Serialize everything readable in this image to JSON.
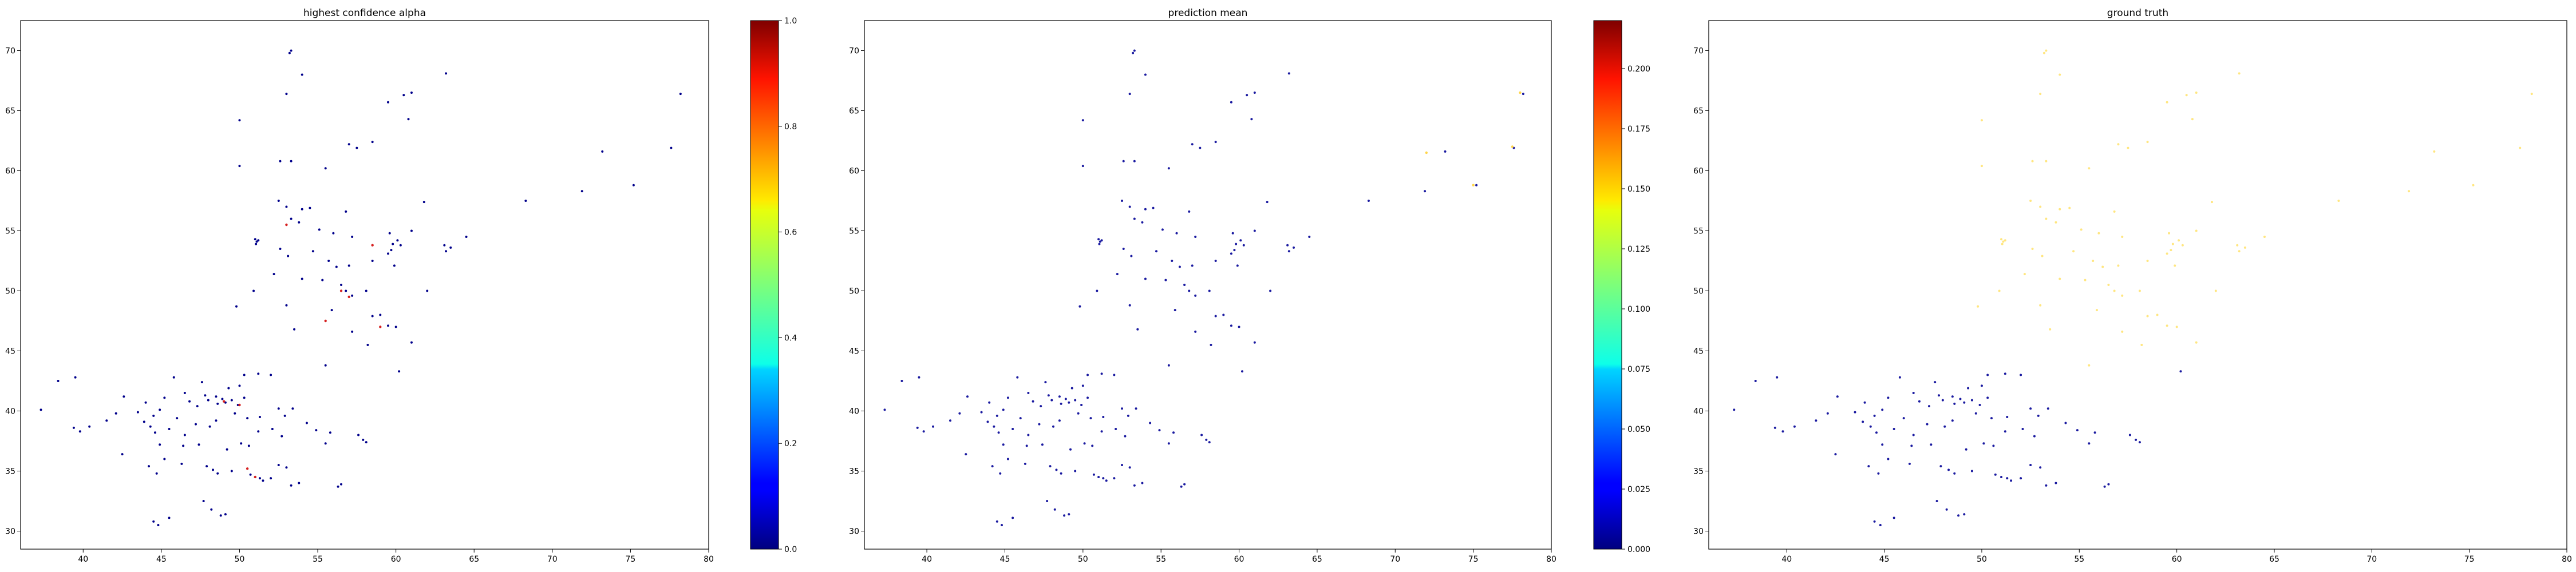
{
  "chart_data": [
    {
      "type": "scatter",
      "title": "highest confidence alpha",
      "xlim": [
        36,
        80
      ],
      "ylim": [
        28.5,
        72.5
      ],
      "xticks": [
        "40",
        "45",
        "50",
        "55",
        "60",
        "65",
        "70",
        "75",
        "80"
      ],
      "yticks": [
        "30",
        "35",
        "40",
        "45",
        "50",
        "55",
        "60",
        "65",
        "70"
      ],
      "colorbar": {
        "min": 0,
        "max": 1.0,
        "colormap": "jet",
        "ticks": [
          "0.0",
          "0.2",
          "0.4",
          "0.6",
          "0.8",
          "1.0"
        ]
      },
      "dominant_color": "#00008b",
      "highlight_color": "#d62020",
      "highlight_points": [
        [
          51,
          34.5
        ],
        [
          50.5,
          35.2
        ],
        [
          53,
          55.5
        ],
        [
          56.5,
          50
        ],
        [
          57,
          49.5
        ],
        [
          59,
          47
        ],
        [
          49,
          40.8
        ],
        [
          50,
          40.5
        ],
        [
          55.5,
          47.5
        ],
        [
          58.5,
          53.8
        ]
      ]
    },
    {
      "type": "scatter",
      "title": "prediction mean",
      "xlim": [
        36,
        80
      ],
      "ylim": [
        28.5,
        72.5
      ],
      "xticks": [
        "40",
        "45",
        "50",
        "55",
        "60",
        "65",
        "70",
        "75",
        "80"
      ],
      "yticks": [
        "30",
        "35",
        "40",
        "45",
        "50",
        "55",
        "60",
        "65",
        "70"
      ],
      "colorbar": {
        "min": 0,
        "max": 0.22,
        "colormap": "jet",
        "ticks": [
          "0.000",
          "0.025",
          "0.050",
          "0.075",
          "0.100",
          "0.125",
          "0.150",
          "0.175",
          "0.200"
        ]
      },
      "dominant_color": "#1a1aa0",
      "highlight_color": "#ffd54a",
      "highlight_points": [
        [
          72,
          61.5
        ],
        [
          77.5,
          62
        ],
        [
          78,
          66.5
        ],
        [
          75,
          58.8
        ]
      ]
    },
    {
      "type": "scatter",
      "title": "ground truth",
      "xlim": [
        36,
        80
      ],
      "ylim": [
        28.5,
        72.5
      ],
      "xticks": [
        "40",
        "45",
        "50",
        "55",
        "60",
        "65",
        "70",
        "75",
        "80"
      ],
      "yticks": [
        "30",
        "35",
        "40",
        "45",
        "50",
        "55",
        "60",
        "65",
        "70"
      ],
      "dominant_color": "#ffe680",
      "lower_color": "#1a1aa0",
      "lower_threshold_lat": 43.5
    }
  ],
  "points": [
    [
      53.3,
      70.0
    ],
    [
      53.2,
      69.8
    ],
    [
      54,
      68
    ],
    [
      61,
      66.5
    ],
    [
      60.5,
      66.3
    ],
    [
      63.2,
      68.1
    ],
    [
      59.5,
      65.7
    ],
    [
      53,
      66.4
    ],
    [
      50,
      64.2
    ],
    [
      60.8,
      64.3
    ],
    [
      53.3,
      60.8
    ],
    [
      52.6,
      60.8
    ],
    [
      55.5,
      60.2
    ],
    [
      50,
      60.4
    ],
    [
      57,
      62.2
    ],
    [
      57.5,
      61.9
    ],
    [
      58.5,
      62.4
    ],
    [
      73.2,
      61.6
    ],
    [
      77.6,
      61.9
    ],
    [
      78.2,
      66.4
    ],
    [
      52.5,
      57.5
    ],
    [
      53,
      57
    ],
    [
      54,
      56.8
    ],
    [
      54.5,
      56.9
    ],
    [
      56.8,
      56.6
    ],
    [
      61.8,
      57.4
    ],
    [
      68.3,
      57.5
    ],
    [
      71.9,
      58.3
    ],
    [
      75.2,
      58.8
    ],
    [
      49.8,
      48.7
    ],
    [
      51,
      54.3
    ],
    [
      51.1,
      54.1
    ],
    [
      51.2,
      54.2
    ],
    [
      51.05,
      53.9
    ],
    [
      53.3,
      56
    ],
    [
      53.8,
      55.7
    ],
    [
      55.1,
      55.1
    ],
    [
      56,
      54.8
    ],
    [
      57.2,
      54.5
    ],
    [
      59.6,
      54.8
    ],
    [
      60.1,
      54.2
    ],
    [
      59.8,
      53.9
    ],
    [
      59.7,
      53.4
    ],
    [
      59.5,
      53.1
    ],
    [
      60.3,
      53.8
    ],
    [
      61,
      55
    ],
    [
      63.1,
      53.8
    ],
    [
      63.5,
      53.6
    ],
    [
      63.2,
      53.3
    ],
    [
      64.5,
      54.5
    ],
    [
      54.7,
      53.3
    ],
    [
      53.1,
      52.9
    ],
    [
      52.6,
      53.5
    ],
    [
      55.7,
      52.5
    ],
    [
      56.2,
      52
    ],
    [
      57,
      52.1
    ],
    [
      58.5,
      52.5
    ],
    [
      59.9,
      52.1
    ],
    [
      52.2,
      51.4
    ],
    [
      54,
      51
    ],
    [
      55.3,
      50.9
    ],
    [
      56.5,
      50.5
    ],
    [
      56.8,
      50
    ],
    [
      57.2,
      49.6
    ],
    [
      58.1,
      50
    ],
    [
      62,
      50
    ],
    [
      50.9,
      50
    ],
    [
      53,
      48.8
    ],
    [
      55.9,
      48.4
    ],
    [
      58.5,
      47.9
    ],
    [
      59,
      48
    ],
    [
      59.5,
      47.1
    ],
    [
      60,
      47
    ],
    [
      57.2,
      46.6
    ],
    [
      53.5,
      46.8
    ],
    [
      58.2,
      45.5
    ],
    [
      61,
      45.7
    ],
    [
      60.2,
      43.3
    ],
    [
      55.5,
      43.8
    ],
    [
      52,
      43
    ],
    [
      51.2,
      43.1
    ],
    [
      50.3,
      43
    ],
    [
      50,
      42.1
    ],
    [
      49.3,
      41.9
    ],
    [
      48.5,
      41.2
    ],
    [
      48.9,
      41
    ],
    [
      49.1,
      40.7
    ],
    [
      49.5,
      40.9
    ],
    [
      49.9,
      40.5
    ],
    [
      50.3,
      41.1
    ],
    [
      47.8,
      41.3
    ],
    [
      47.3,
      40.4
    ],
    [
      46.8,
      40.8
    ],
    [
      46.5,
      41.5
    ],
    [
      45.2,
      41.1
    ],
    [
      44.9,
      40.1
    ],
    [
      44.5,
      39.6
    ],
    [
      44,
      40.7
    ],
    [
      43.5,
      39.9
    ],
    [
      43.9,
      39.1
    ],
    [
      44.3,
      38.7
    ],
    [
      45.5,
      38.5
    ],
    [
      46,
      39.4
    ],
    [
      46.5,
      38
    ],
    [
      47.2,
      38.9
    ],
    [
      48.5,
      39.2
    ],
    [
      48.1,
      38.7
    ],
    [
      49.7,
      39.8
    ],
    [
      50.5,
      39.4
    ],
    [
      51.3,
      39.5
    ],
    [
      52.5,
      40.2
    ],
    [
      53.4,
      40.2
    ],
    [
      52.9,
      39.6
    ],
    [
      52.1,
      38.5
    ],
    [
      51.2,
      38.3
    ],
    [
      52.7,
      37.9
    ],
    [
      50.1,
      37.3
    ],
    [
      50.6,
      37.1
    ],
    [
      49.2,
      36.8
    ],
    [
      47.4,
      37.2
    ],
    [
      46.4,
      37.1
    ],
    [
      44.9,
      37.2
    ],
    [
      45.2,
      36
    ],
    [
      44.2,
      35.4
    ],
    [
      44.7,
      34.8
    ],
    [
      46.3,
      35.6
    ],
    [
      47.9,
      35.4
    ],
    [
      48.3,
      35.1
    ],
    [
      48.6,
      34.8
    ],
    [
      49.5,
      35
    ],
    [
      50.7,
      34.7
    ],
    [
      51,
      34.5
    ],
    [
      51.3,
      34.4
    ],
    [
      51.5,
      34.2
    ],
    [
      52.5,
      35.5
    ],
    [
      53,
      35.3
    ],
    [
      52,
      34.4
    ],
    [
      53.3,
      33.8
    ],
    [
      53.8,
      34
    ],
    [
      56.3,
      33.7
    ],
    [
      56.5,
      33.9
    ],
    [
      57.9,
      37.6
    ],
    [
      58.1,
      37.4
    ],
    [
      57.6,
      38
    ],
    [
      55.8,
      38.2
    ],
    [
      47.7,
      32.5
    ],
    [
      48.2,
      31.8
    ],
    [
      49.1,
      31.4
    ],
    [
      48.8,
      31.3
    ],
    [
      45.5,
      31.1
    ],
    [
      44.8,
      30.5
    ],
    [
      44.5,
      30.8
    ],
    [
      42.5,
      36.4
    ],
    [
      40.4,
      38.7
    ],
    [
      39.8,
      38.3
    ],
    [
      39.4,
      38.6
    ],
    [
      38.4,
      42.5
    ],
    [
      39.5,
      42.8
    ],
    [
      37.3,
      40.1
    ],
    [
      41.5,
      39.2
    ],
    [
      42.6,
      41.2
    ],
    [
      42.1,
      39.8
    ],
    [
      45.8,
      42.8
    ],
    [
      47.6,
      42.4
    ],
    [
      48,
      40.9
    ],
    [
      48.6,
      40.6
    ],
    [
      54.3,
      39
    ],
    [
      54.9,
      38.4
    ],
    [
      55.5,
      37.3
    ],
    [
      44.6,
      38.2
    ]
  ]
}
